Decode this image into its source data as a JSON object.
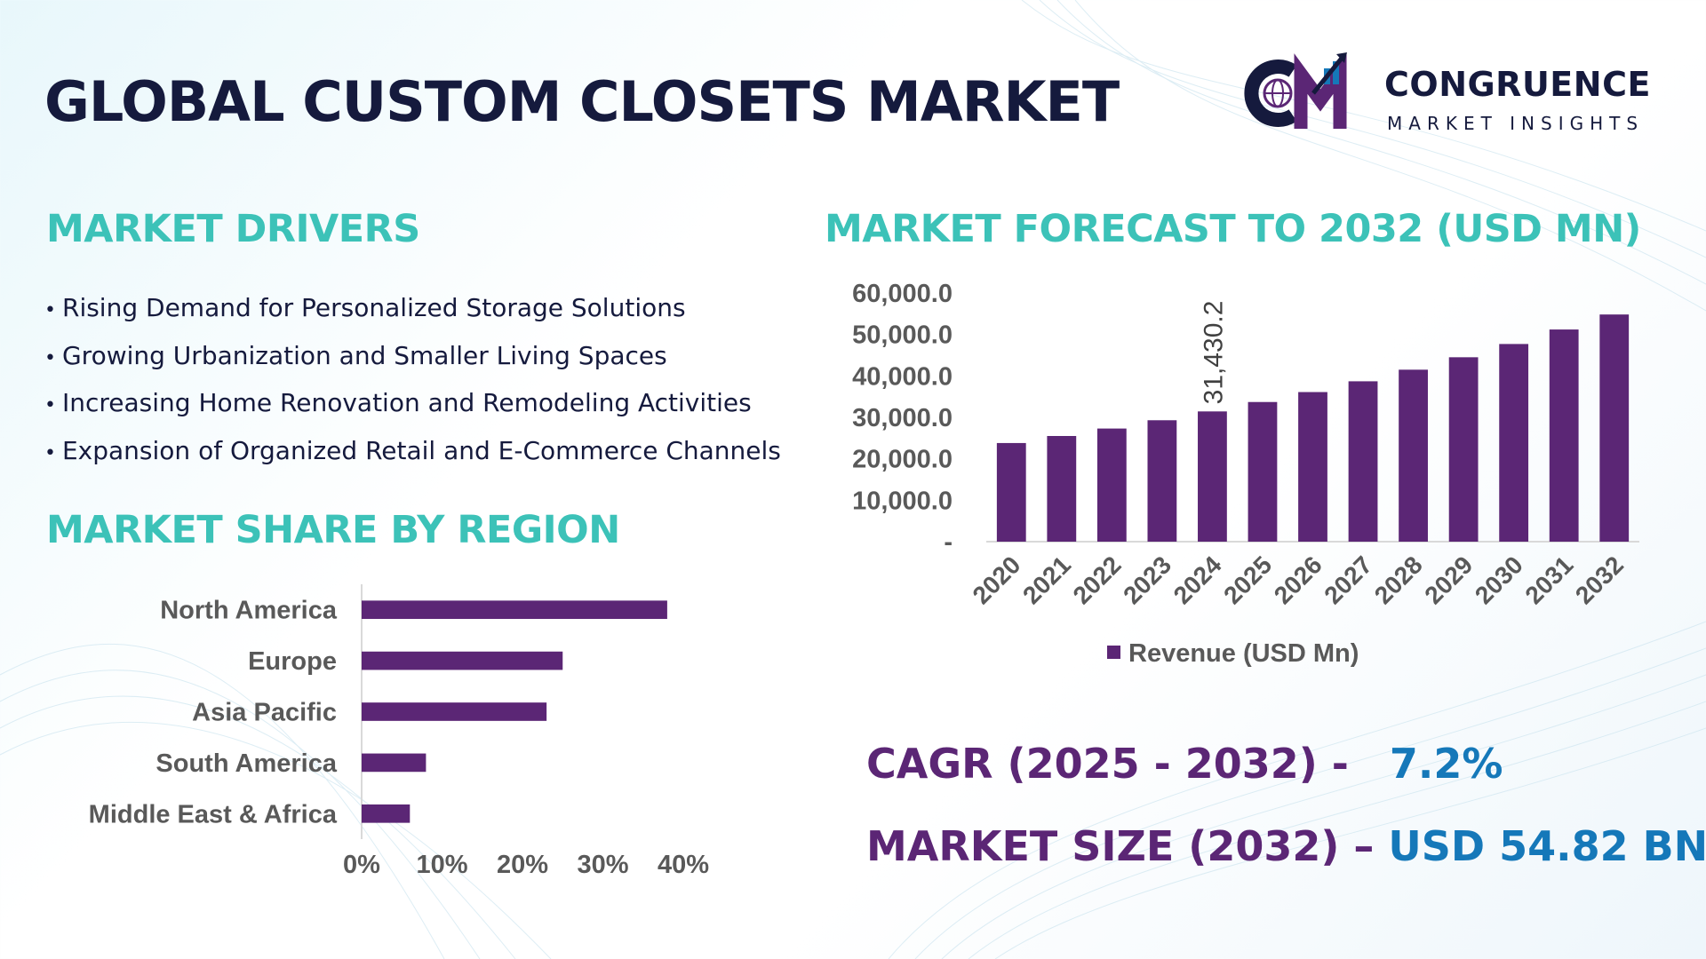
{
  "header": {
    "title": "GLOBAL CUSTOM CLOSETS MARKET"
  },
  "logo": {
    "name": "CONGRUENCE",
    "tagline": "MARKET INSIGHTS",
    "icon": "cm-globe-growth-icon",
    "colors": [
      "#151a3d",
      "#5b2675",
      "#1578b9"
    ]
  },
  "drivers": {
    "heading": "MARKET DRIVERS",
    "items": [
      "Rising Demand for Personalized Storage Solutions",
      "Growing Urbanization and Smaller Living Spaces",
      "Increasing Home Renovation and Remodeling Activities",
      "Expansion of Organized Retail and E-Commerce Channels"
    ]
  },
  "region": {
    "heading": "MARKET SHARE BY REGION"
  },
  "forecast": {
    "heading": "MARKET FORECAST TO 2032 (USD MN)"
  },
  "kpis": {
    "cagr_label": "CAGR (2025 - 2032) -",
    "cagr_value": "7.2%",
    "size_label": "MARKET SIZE (2032) –",
    "size_value": "USD 54.82 BN"
  },
  "colors": {
    "heading": "#3cc2b8",
    "bar": "#5b2675",
    "kpi_label": "#5b2675",
    "kpi_value": "#1578b9",
    "title": "#151a3d"
  },
  "chart_data": [
    {
      "type": "bar",
      "orientation": "vertical",
      "categories": [
        "2020",
        "2021",
        "2022",
        "2023",
        "2024",
        "2025",
        "2026",
        "2027",
        "2028",
        "2029",
        "2030",
        "2031",
        "2032"
      ],
      "series": [
        {
          "name": "Revenue (USD Mn)",
          "values": [
            23800,
            25500,
            27300,
            29300,
            31430.2,
            33700,
            36100,
            38700,
            41500,
            44500,
            47700,
            51200,
            54820
          ]
        }
      ],
      "data_labels": [
        {
          "category": "2024",
          "text": "31,430.2"
        }
      ],
      "yticks": [
        "-",
        "10,000.0",
        "20,000.0",
        "30,000.0",
        "40,000.0",
        "50,000.0",
        "60,000.0"
      ],
      "ylim": [
        0,
        60000
      ],
      "legend": "bottom",
      "grid": false,
      "color": "#5b2675"
    },
    {
      "type": "bar",
      "orientation": "horizontal",
      "categories": [
        "North America",
        "Europe",
        "Asia Pacific",
        "South America",
        "Middle East & Africa"
      ],
      "values": [
        0.38,
        0.25,
        0.23,
        0.08,
        0.06
      ],
      "xticks": [
        "0%",
        "10%",
        "20%",
        "30%",
        "40%"
      ],
      "xlim": [
        0,
        0.4
      ],
      "grid": false,
      "color": "#5b2675"
    }
  ]
}
